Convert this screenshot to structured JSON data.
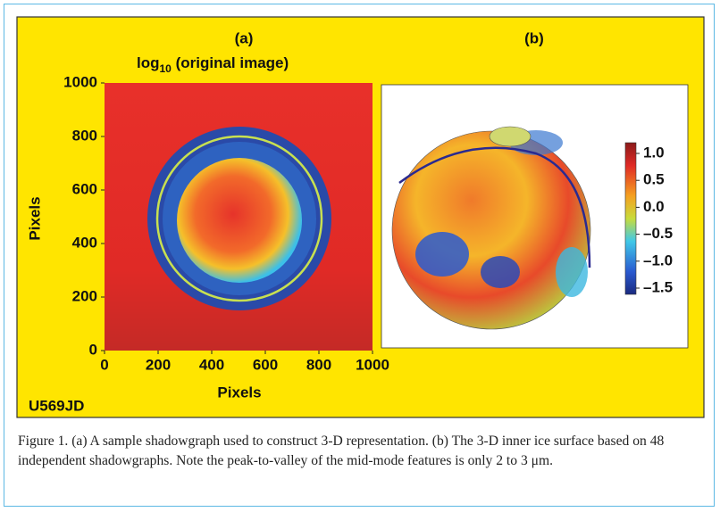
{
  "figure": {
    "panel_a": {
      "label": "(a)",
      "title_main": "log",
      "title_sub": "10",
      "title_rest": " (original image)",
      "xlabel": "Pixels",
      "ylabel": "Pixels",
      "xlim": [
        0,
        1000
      ],
      "ylim": [
        0,
        1000
      ],
      "xticks": [
        0,
        200,
        400,
        600,
        800,
        1000
      ],
      "yticks": [
        0,
        200,
        400,
        600,
        800,
        1000
      ]
    },
    "panel_b": {
      "label": "(b)",
      "colorbar_ticks": [
        {
          "value": 1,
          "label": "1.0"
        },
        0.5,
        {
          "value": 0,
          "label": "0.0"
        },
        {
          "value": -0.5,
          "label": "–0.5"
        },
        {
          "value": -1,
          "label": "–1.0"
        },
        {
          "value": -1.5,
          "label": "–1.5"
        }
      ]
    },
    "code": "U569JD",
    "caption": "Figure 1. (a) A sample shadowgraph used to construct 3-D representation. (b) The 3-D inner ice surface based on 48 independent shadowgraphs. Note the peak-to-valley of the mid-mode features is only 2 to 3 μm."
  }
}
